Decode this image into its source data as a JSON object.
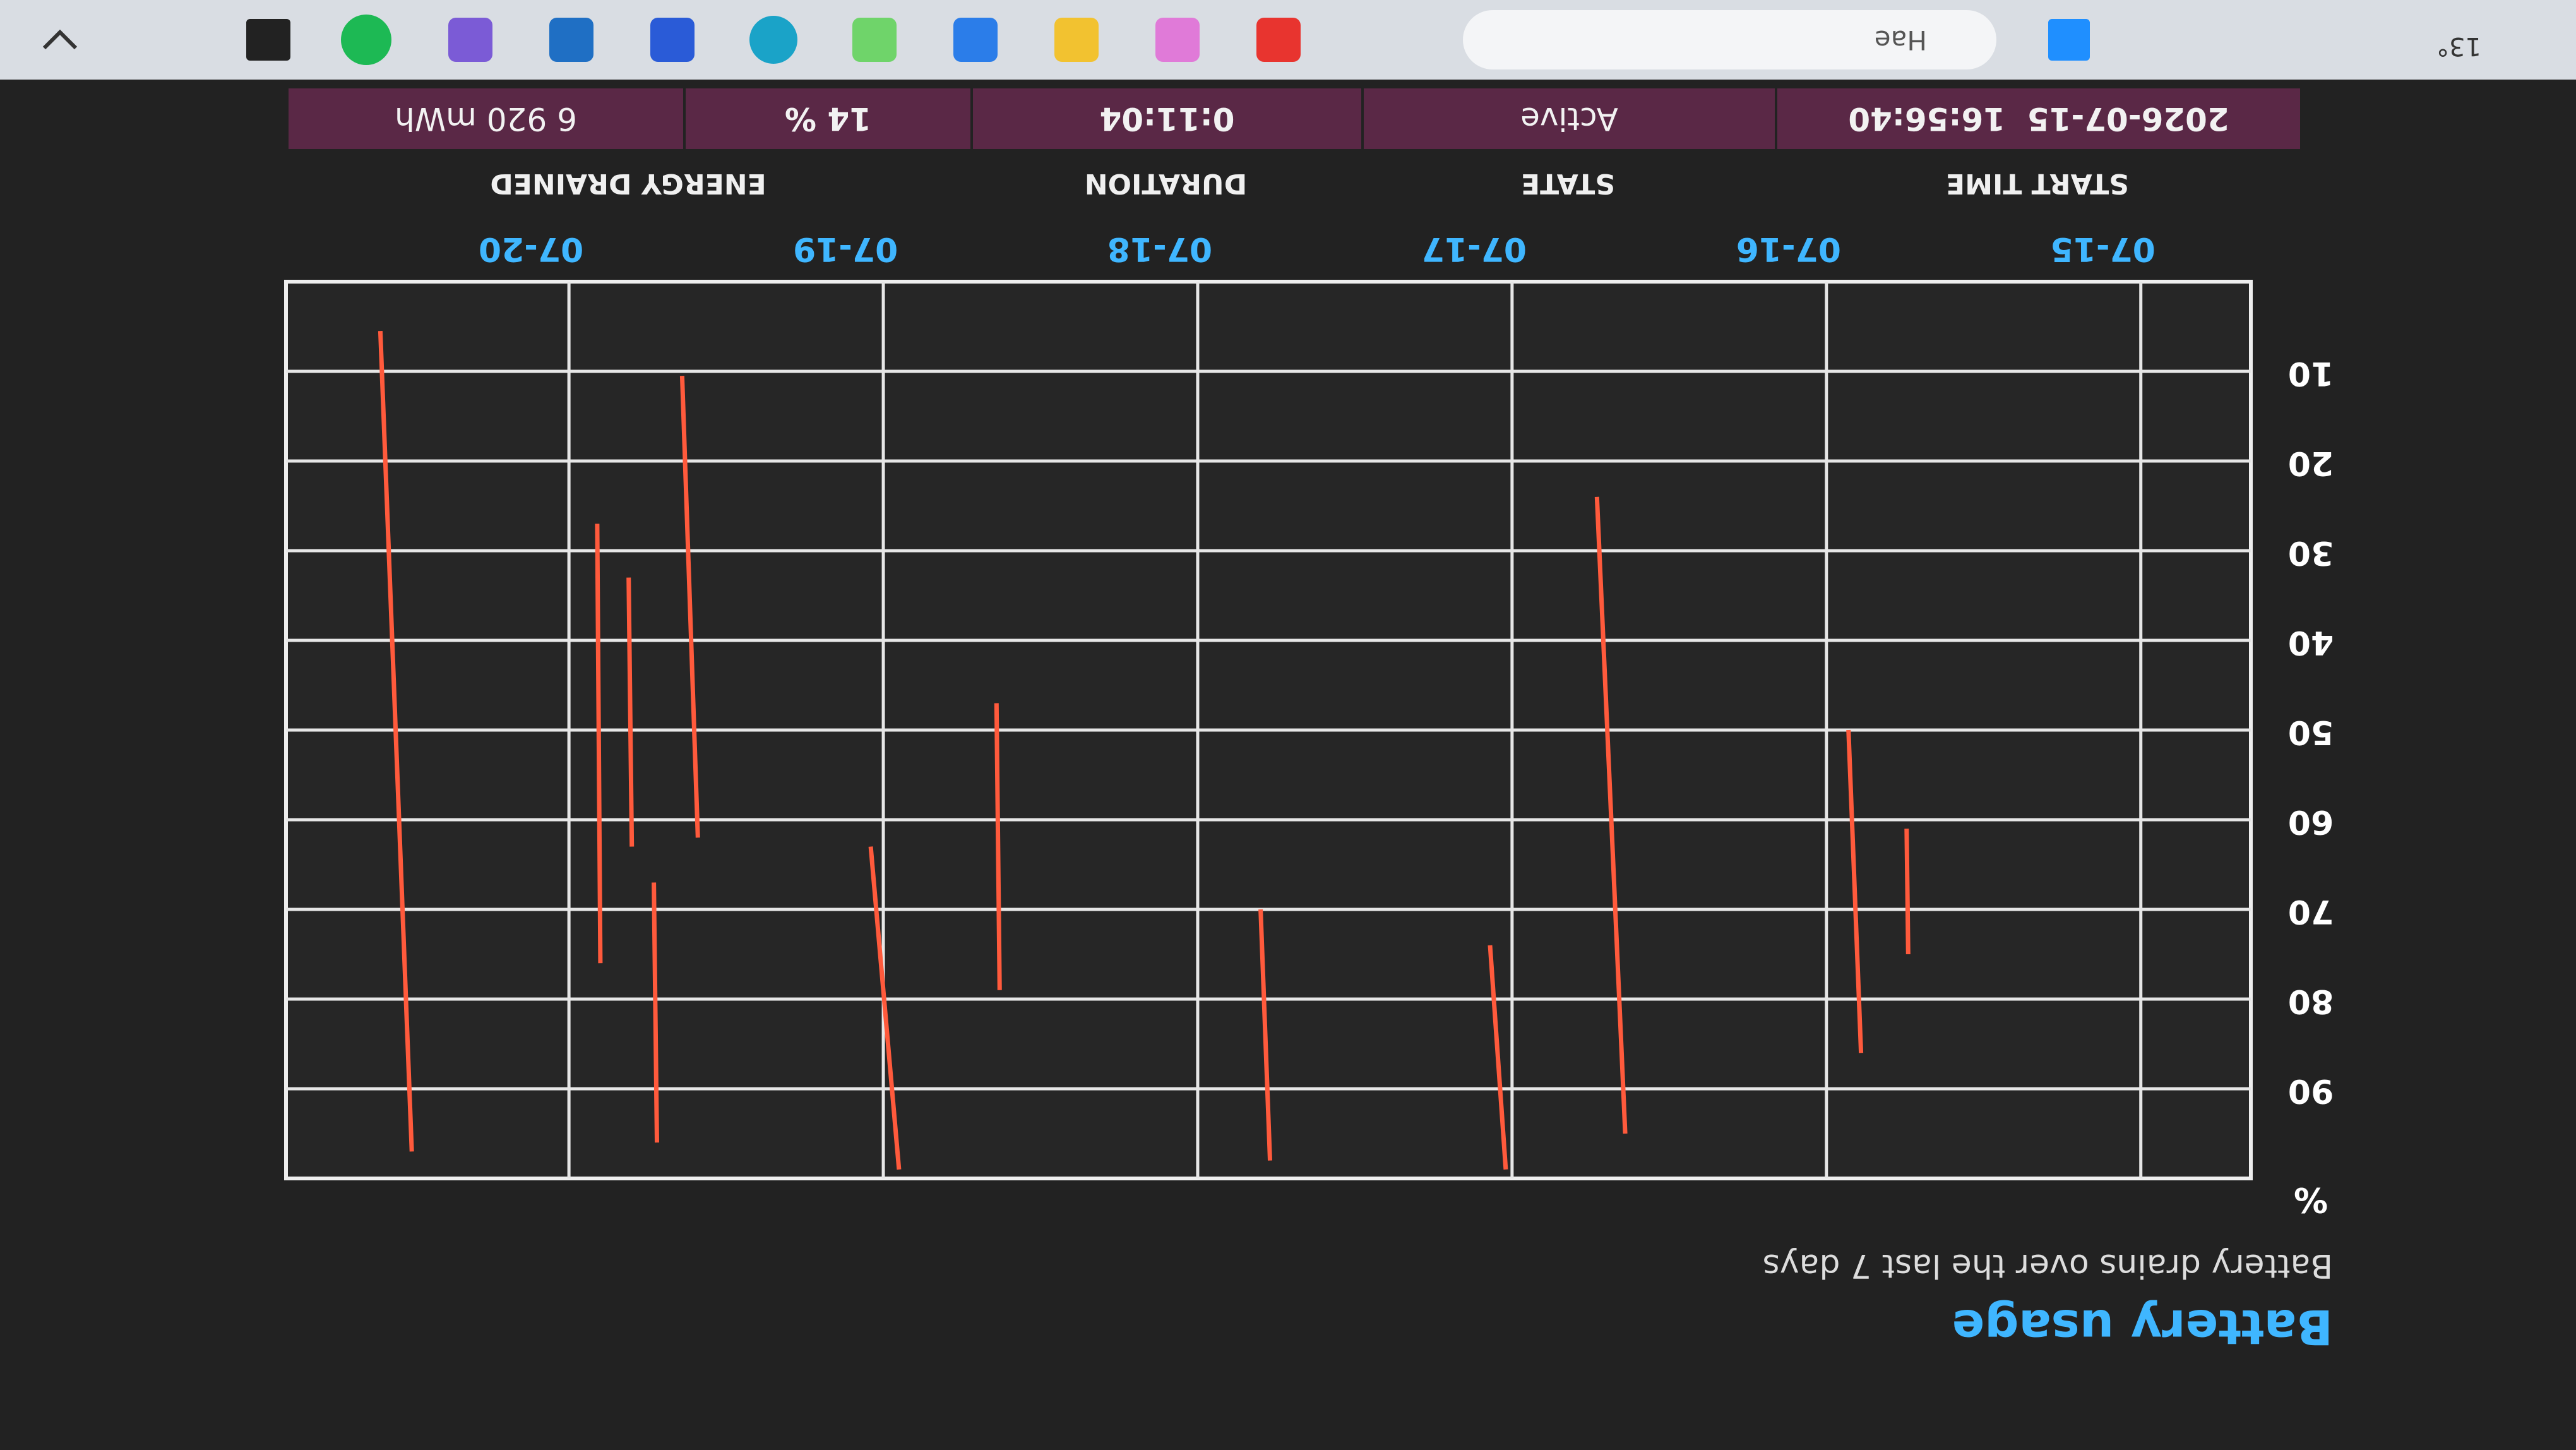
{
  "header": {
    "title": "Battery usage",
    "subtitle": "Battery drains over the last 7 days"
  },
  "chart_data": {
    "type": "line",
    "y_label": "%",
    "x": [
      0.74,
      0.745,
      null,
      0.89,
      0.93,
      null,
      1.64,
      1.73,
      null,
      2.02,
      2.07,
      null,
      2.77,
      2.8,
      null,
      3.63,
      3.64,
      null,
      3.95,
      4.04,
      null,
      4.59,
      4.64,
      null,
      4.72,
      4.73,
      null,
      4.8,
      4.81,
      null,
      4.9,
      4.91,
      null,
      5.5,
      5.6
    ],
    "series": [
      {
        "color": "#ff5a3c",
        "values": [
          75,
          61,
          null,
          86,
          50,
          null,
          95,
          24,
          null,
          99,
          74,
          null,
          98,
          70,
          null,
          79,
          47,
          null,
          99,
          63,
          null,
          62,
          10.5,
          null,
          96,
          67,
          null,
          63,
          33,
          null,
          76,
          27,
          null,
          97,
          5.5
        ]
      }
    ],
    "xlim": [
      -0.35,
      5.9
    ],
    "xticks": [
      {
        "value": 0,
        "label": "07-15"
      },
      {
        "value": 1,
        "label": "07-16"
      },
      {
        "value": 2,
        "label": "07-17"
      },
      {
        "value": 3,
        "label": "07-18"
      },
      {
        "value": 4,
        "label": "07-19"
      },
      {
        "value": 5,
        "label": "07-20"
      }
    ],
    "ylim": [
      0,
      100
    ],
    "yticks": [
      10,
      20,
      30,
      40,
      50,
      60,
      70,
      80,
      90
    ],
    "grid": true
  },
  "table": {
    "headers": [
      "START TIME",
      "STATE",
      "DURATION",
      "ENERGY DRAINED"
    ],
    "rows": [
      [
        "2026-07-15  16:56:40",
        "Active",
        "0:11:04",
        "14 %",
        "6 920 mWh"
      ]
    ]
  },
  "taskbar": {
    "search": "Hae",
    "weather": "13°"
  }
}
